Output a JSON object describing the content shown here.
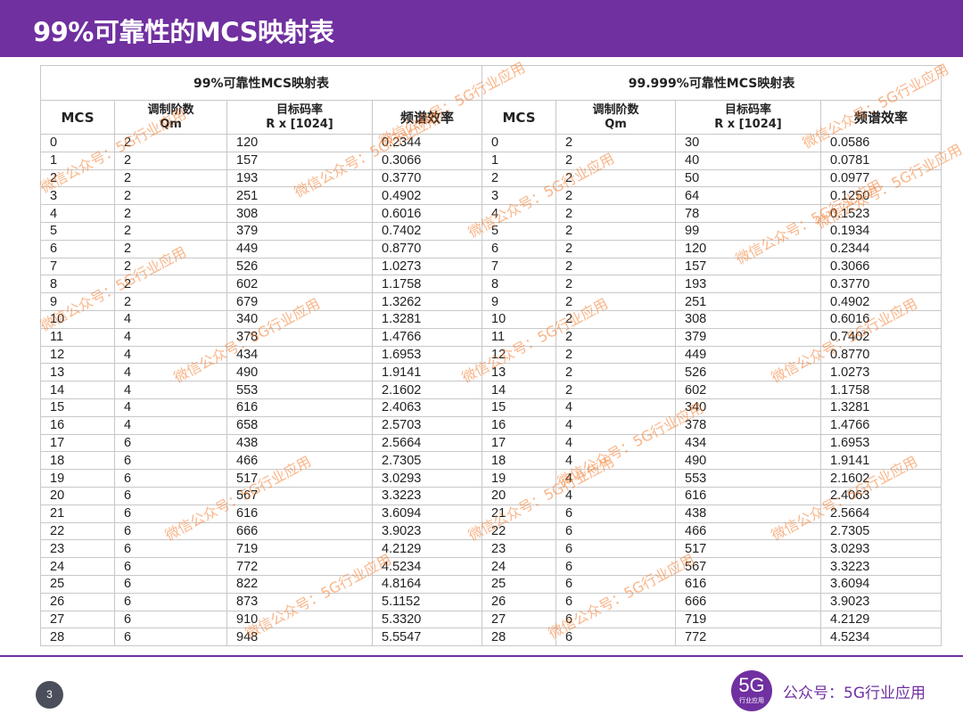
{
  "header": {
    "title": "99%可靠性的MCS映射表"
  },
  "table": {
    "group_titles": [
      "99%可靠性MCS映射表",
      "99.999%可靠性MCS映射表"
    ],
    "columns": [
      {
        "line1": "MCS",
        "line2": ""
      },
      {
        "line1": "调制阶数",
        "line2": "Qm"
      },
      {
        "line1": "目标码率",
        "line2": "R x [1024]"
      },
      {
        "line1": "频谱效率",
        "line2": ""
      }
    ],
    "left_rows": [
      [
        "0",
        "2",
        "120",
        "0.2344"
      ],
      [
        "1",
        "2",
        "157",
        "0.3066"
      ],
      [
        "2",
        "2",
        "193",
        "0.3770"
      ],
      [
        "3",
        "2",
        "251",
        "0.4902"
      ],
      [
        "4",
        "2",
        "308",
        "0.6016"
      ],
      [
        "5",
        "2",
        "379",
        "0.7402"
      ],
      [
        "6",
        "2",
        "449",
        "0.8770"
      ],
      [
        "7",
        "2",
        "526",
        "1.0273"
      ],
      [
        "8",
        "2",
        "602",
        "1.1758"
      ],
      [
        "9",
        "2",
        "679",
        "1.3262"
      ],
      [
        "10",
        "4",
        "340",
        "1.3281"
      ],
      [
        "11",
        "4",
        "378",
        "1.4766"
      ],
      [
        "12",
        "4",
        "434",
        "1.6953"
      ],
      [
        "13",
        "4",
        "490",
        "1.9141"
      ],
      [
        "14",
        "4",
        "553",
        "2.1602"
      ],
      [
        "15",
        "4",
        "616",
        "2.4063"
      ],
      [
        "16",
        "4",
        "658",
        "2.5703"
      ],
      [
        "17",
        "6",
        "438",
        "2.5664"
      ],
      [
        "18",
        "6",
        "466",
        "2.7305"
      ],
      [
        "19",
        "6",
        "517",
        "3.0293"
      ],
      [
        "20",
        "6",
        "567",
        "3.3223"
      ],
      [
        "21",
        "6",
        "616",
        "3.6094"
      ],
      [
        "22",
        "6",
        "666",
        "3.9023"
      ],
      [
        "23",
        "6",
        "719",
        "4.2129"
      ],
      [
        "24",
        "6",
        "772",
        "4.5234"
      ],
      [
        "25",
        "6",
        "822",
        "4.8164"
      ],
      [
        "26",
        "6",
        "873",
        "5.1152"
      ],
      [
        "27",
        "6",
        "910",
        "5.3320"
      ],
      [
        "28",
        "6",
        "948",
        "5.5547"
      ]
    ],
    "right_rows": [
      [
        "0",
        "2",
        "30",
        "0.0586"
      ],
      [
        "1",
        "2",
        "40",
        "0.0781"
      ],
      [
        "2",
        "2",
        "50",
        "0.0977"
      ],
      [
        "3",
        "2",
        "64",
        "0.1250"
      ],
      [
        "4",
        "2",
        "78",
        "0.1523"
      ],
      [
        "5",
        "2",
        "99",
        "0.1934"
      ],
      [
        "6",
        "2",
        "120",
        "0.2344"
      ],
      [
        "7",
        "2",
        "157",
        "0.3066"
      ],
      [
        "8",
        "2",
        "193",
        "0.3770"
      ],
      [
        "9",
        "2",
        "251",
        "0.4902"
      ],
      [
        "10",
        "2",
        "308",
        "0.6016"
      ],
      [
        "11",
        "2",
        "379",
        "0.7402"
      ],
      [
        "12",
        "2",
        "449",
        "0.8770"
      ],
      [
        "13",
        "2",
        "526",
        "1.0273"
      ],
      [
        "14",
        "2",
        "602",
        "1.1758"
      ],
      [
        "15",
        "4",
        "340",
        "1.3281"
      ],
      [
        "16",
        "4",
        "378",
        "1.4766"
      ],
      [
        "17",
        "4",
        "434",
        "1.6953"
      ],
      [
        "18",
        "4",
        "490",
        "1.9141"
      ],
      [
        "19",
        "4",
        "553",
        "2.1602"
      ],
      [
        "20",
        "4",
        "616",
        "2.4063"
      ],
      [
        "21",
        "6",
        "438",
        "2.5664"
      ],
      [
        "22",
        "6",
        "466",
        "2.7305"
      ],
      [
        "23",
        "6",
        "517",
        "3.0293"
      ],
      [
        "24",
        "6",
        "567",
        "3.3223"
      ],
      [
        "25",
        "6",
        "616",
        "3.6094"
      ],
      [
        "26",
        "6",
        "666",
        "3.9023"
      ],
      [
        "27",
        "6",
        "719",
        "4.2129"
      ],
      [
        "28",
        "6",
        "772",
        "4.5234"
      ]
    ]
  },
  "watermark": {
    "text": "微信公众号：5G行业应用"
  },
  "footer": {
    "page_number": "3",
    "logo_main": "5G",
    "logo_sub": "行业应用",
    "text": "公众号：5G行业应用"
  },
  "colors": {
    "brand": "#7030a0",
    "watermark": "#f47828",
    "page_badge": "#4b4f5c"
  }
}
